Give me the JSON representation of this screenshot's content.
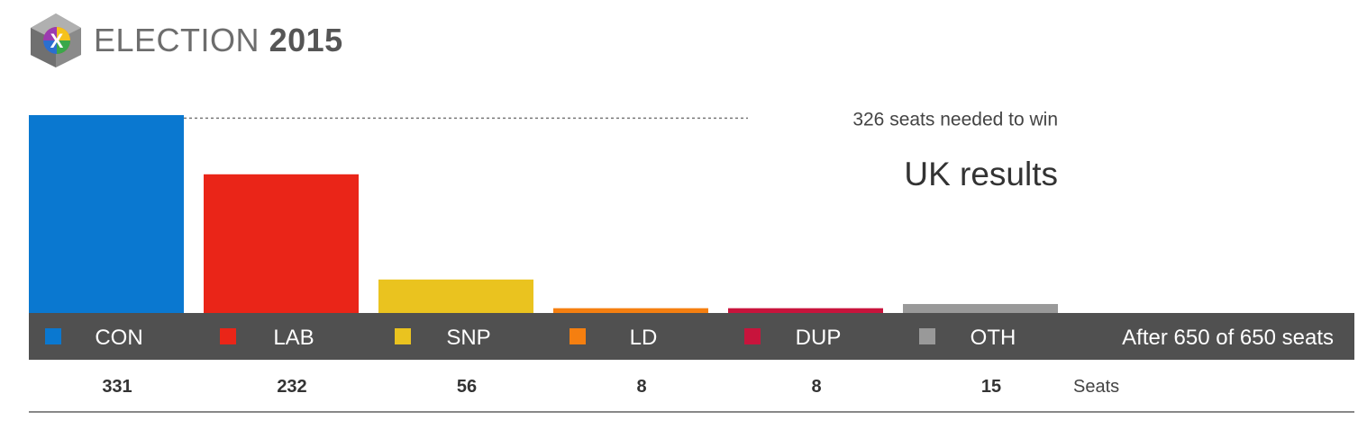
{
  "logo": {
    "icon": "ballot-cube-icon",
    "text_main": "ELECTION",
    "text_year": "2015"
  },
  "chart_data": {
    "type": "bar",
    "title": "UK results",
    "categories": [
      "CON",
      "LAB",
      "SNP",
      "LD",
      "DUP",
      "OTH"
    ],
    "values": [
      331,
      232,
      56,
      8,
      8,
      15
    ],
    "colors": [
      "#0a78d0",
      "#ea2518",
      "#eac31f",
      "#f57f10",
      "#c8143c",
      "#999999"
    ],
    "ylim": [
      0,
      331
    ],
    "threshold": {
      "value": 326,
      "label": "326 seats needed to win"
    },
    "progress_label": "After 650 of 650 seats",
    "row_label": "Seats",
    "legend_placement": "bottom",
    "grid": false
  }
}
